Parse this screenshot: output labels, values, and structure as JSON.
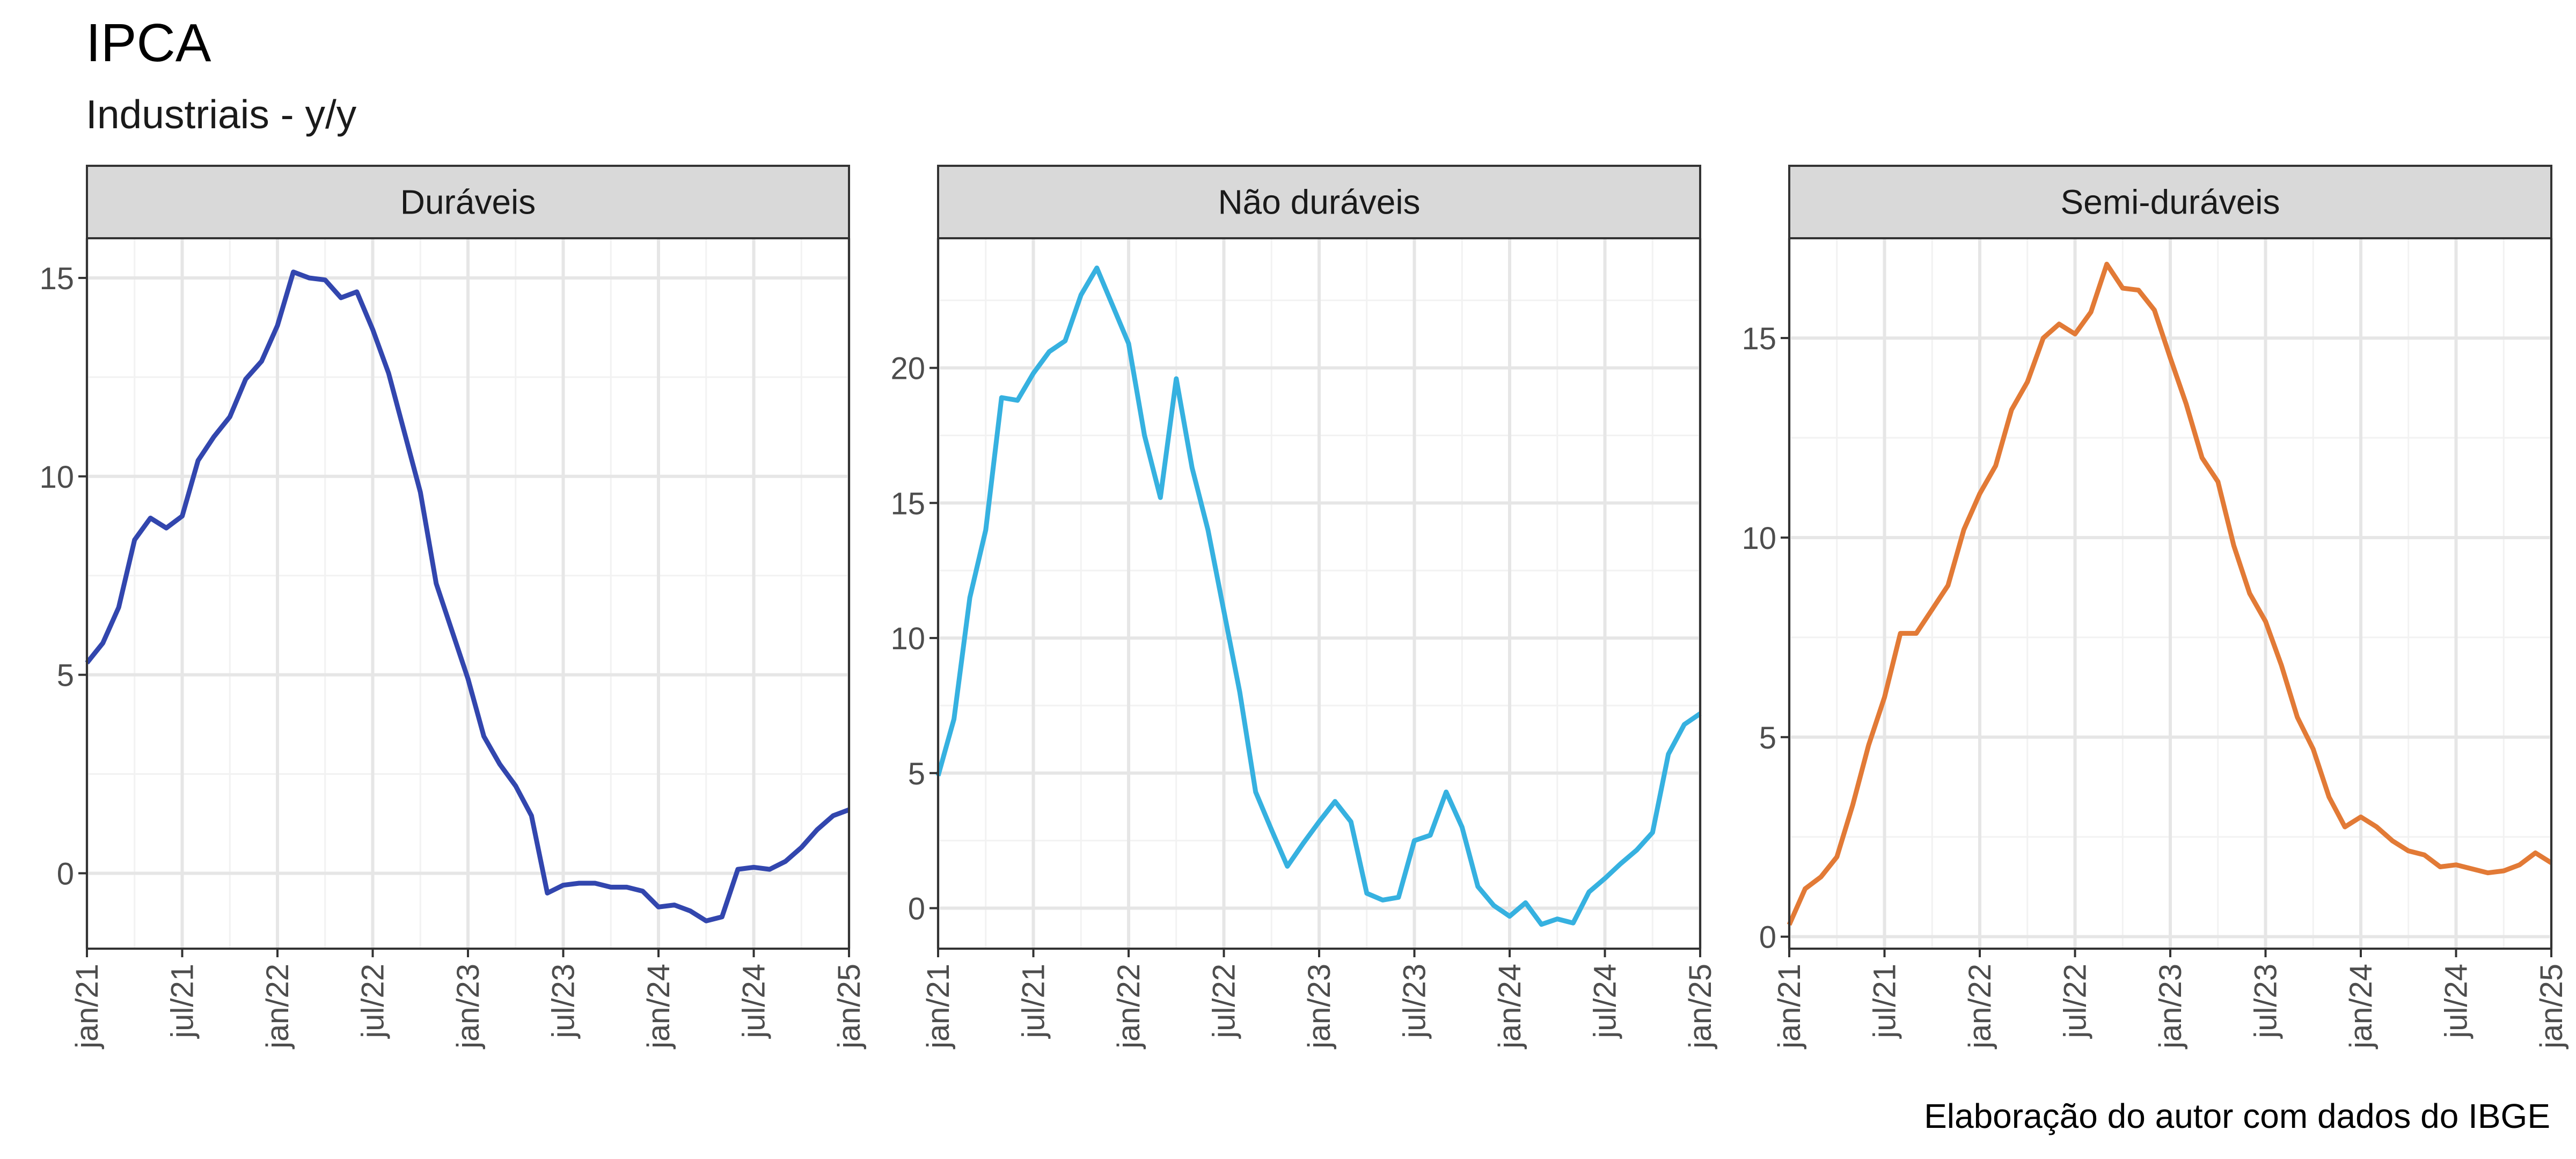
{
  "title": "IPCA",
  "subtitle": "Industriais - y/y",
  "caption": "Elaboração do autor com dados do IBGE",
  "chart_data": [
    {
      "type": "line",
      "panel": "Duráveis",
      "color": "#3246ae",
      "x_start": "2021-01",
      "x_ticks": [
        "jan/21",
        "jul/21",
        "jan/22",
        "jul/22",
        "jan/23",
        "jul/23",
        "jan/24",
        "jul/24",
        "jan/25"
      ],
      "xlim": [
        "2021-01",
        "2025-01"
      ],
      "y_ticks": [
        0,
        5,
        10,
        15
      ],
      "ylim": [
        -1.9,
        16.0
      ],
      "values": [
        5.3,
        5.8,
        6.7,
        8.4,
        8.95,
        8.7,
        9.0,
        10.4,
        11.0,
        11.5,
        12.45,
        12.9,
        13.8,
        15.15,
        15.0,
        14.95,
        14.5,
        14.65,
        13.7,
        12.6,
        11.1,
        9.6,
        7.3,
        6.1,
        4.9,
        3.45,
        2.75,
        2.2,
        1.45,
        -0.5,
        -0.3,
        -0.25,
        -0.25,
        -0.35,
        -0.35,
        -0.45,
        -0.85,
        -0.8,
        -0.95,
        -1.2,
        -1.1,
        0.1,
        0.15,
        0.1,
        0.3,
        0.65,
        1.1,
        1.45,
        1.6
      ]
    },
    {
      "type": "line",
      "panel": "Não duráveis",
      "color": "#36b1e0",
      "x_start": "2021-01",
      "x_ticks": [
        "jan/21",
        "jul/21",
        "jan/22",
        "jul/22",
        "jan/23",
        "jul/23",
        "jan/24",
        "jul/24",
        "jan/25"
      ],
      "xlim": [
        "2021-01",
        "2025-01"
      ],
      "y_ticks": [
        0,
        5,
        10,
        15,
        20
      ],
      "ylim": [
        -1.5,
        24.8
      ],
      "values": [
        4.9,
        7.0,
        11.5,
        14.0,
        18.9,
        18.8,
        19.8,
        20.6,
        21.0,
        22.7,
        23.7,
        22.3,
        20.9,
        17.5,
        15.2,
        19.6,
        16.3,
        14.0,
        11.0,
        8.0,
        4.3,
        2.9,
        1.55,
        2.4,
        3.2,
        3.95,
        3.2,
        0.55,
        0.3,
        0.4,
        2.5,
        2.7,
        4.3,
        3.0,
        0.8,
        0.1,
        -0.3,
        0.2,
        -0.6,
        -0.4,
        -0.55,
        0.6,
        1.1,
        1.65,
        2.15,
        2.8,
        5.7,
        6.8,
        7.2
      ]
    },
    {
      "type": "line",
      "panel": "Semi-duráveis",
      "color": "#e27a36",
      "x_start": "2021-01",
      "x_ticks": [
        "jan/21",
        "jul/21",
        "jan/22",
        "jul/22",
        "jan/23",
        "jul/23",
        "jan/24",
        "jul/24",
        "jan/25"
      ],
      "xlim": [
        "2021-01",
        "2025-01"
      ],
      "y_ticks": [
        0,
        5,
        10,
        15
      ],
      "ylim": [
        -0.3,
        17.5
      ],
      "values": [
        0.3,
        1.2,
        1.5,
        2.0,
        3.3,
        4.8,
        6.0,
        7.6,
        7.6,
        8.2,
        8.8,
        10.2,
        11.1,
        11.8,
        13.2,
        13.9,
        15.0,
        15.35,
        15.1,
        15.65,
        16.85,
        16.25,
        16.2,
        15.7,
        14.5,
        13.35,
        12.0,
        11.4,
        9.8,
        8.6,
        7.9,
        6.8,
        5.5,
        4.7,
        3.5,
        2.75,
        3.0,
        2.75,
        2.4,
        2.15,
        2.05,
        1.75,
        1.8,
        1.7,
        1.6,
        1.65,
        1.8,
        2.1,
        1.85
      ]
    }
  ]
}
